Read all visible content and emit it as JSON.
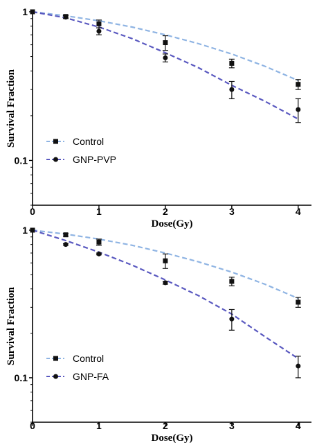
{
  "chart_data": [
    {
      "type": "scatter",
      "title": "",
      "xlabel": "Dose(Gy)",
      "ylabel": "Survival Fraction",
      "xlim": [
        0,
        4.2
      ],
      "ylim": [
        0.05,
        1.0
      ],
      "yscale": "log",
      "xticks": [
        0,
        1,
        2,
        3,
        4
      ],
      "yticks": [
        {
          "value": 1,
          "label": "1"
        },
        {
          "value": 0.1,
          "label": "0.1"
        }
      ],
      "grid": false,
      "legend_position": "bottom-left",
      "series": [
        {
          "name": "Control",
          "marker": "square",
          "color": "#111111",
          "fit_color": "#8fb4e3",
          "x": [
            0,
            0.5,
            1,
            2,
            3,
            4
          ],
          "y": [
            1.0,
            0.93,
            0.83,
            0.62,
            0.45,
            0.325
          ],
          "err": [
            0,
            0.02,
            0.05,
            0.07,
            0.03,
            0.025
          ],
          "fit": [
            [
              0,
              1.0
            ],
            [
              0.5,
              0.94
            ],
            [
              1,
              0.87
            ],
            [
              1.5,
              0.79
            ],
            [
              2,
              0.7
            ],
            [
              2.5,
              0.61
            ],
            [
              3,
              0.52
            ],
            [
              3.5,
              0.43
            ],
            [
              4,
              0.345
            ]
          ]
        },
        {
          "name": "GNP-PVP",
          "marker": "circle",
          "color": "#111111",
          "fit_color": "#5a59c0",
          "x": [
            0,
            0.5,
            1,
            2,
            3,
            4
          ],
          "y": [
            1.0,
            0.92,
            0.74,
            0.49,
            0.3,
            0.22
          ],
          "err": [
            0,
            0.02,
            0.04,
            0.03,
            0.04,
            0.04
          ],
          "fit": [
            [
              0,
              1.0
            ],
            [
              0.5,
              0.91
            ],
            [
              1,
              0.79
            ],
            [
              1.5,
              0.66
            ],
            [
              2,
              0.53
            ],
            [
              2.5,
              0.42
            ],
            [
              3,
              0.32
            ],
            [
              3.5,
              0.25
            ],
            [
              4,
              0.19
            ]
          ]
        }
      ]
    },
    {
      "type": "scatter",
      "title": "",
      "xlabel": "Dose(Gy)",
      "ylabel": "Survival Fraction",
      "xlim": [
        0,
        4.2
      ],
      "ylim": [
        0.05,
        1.0
      ],
      "yscale": "log",
      "xticks": [
        0,
        1,
        2,
        3,
        4
      ],
      "yticks": [
        {
          "value": 1,
          "label": "1"
        },
        {
          "value": 0.1,
          "label": "0.1"
        }
      ],
      "grid": false,
      "legend_position": "bottom-left",
      "series": [
        {
          "name": "Control",
          "marker": "square",
          "color": "#111111",
          "fit_color": "#8fb4e3",
          "x": [
            0,
            0.5,
            1,
            2,
            3,
            4
          ],
          "y": [
            1.0,
            0.93,
            0.83,
            0.62,
            0.45,
            0.325
          ],
          "err": [
            0,
            0.02,
            0.04,
            0.07,
            0.03,
            0.025
          ],
          "fit": [
            [
              0,
              1.0
            ],
            [
              0.5,
              0.94
            ],
            [
              1,
              0.87
            ],
            [
              1.5,
              0.79
            ],
            [
              2,
              0.7
            ],
            [
              2.5,
              0.61
            ],
            [
              3,
              0.52
            ],
            [
              3.5,
              0.43
            ],
            [
              4,
              0.345
            ]
          ]
        },
        {
          "name": "GNP-FA",
          "marker": "circle",
          "color": "#111111",
          "fit_color": "#5a59c0",
          "x": [
            0,
            0.5,
            1,
            2,
            3,
            4
          ],
          "y": [
            1.0,
            0.8,
            0.69,
            0.44,
            0.25,
            0.12
          ],
          "err": [
            0,
            0.01,
            0.01,
            0.01,
            0.04,
            0.02
          ],
          "fit": [
            [
              0,
              1.0
            ],
            [
              0.5,
              0.85
            ],
            [
              1,
              0.71
            ],
            [
              1.5,
              0.58
            ],
            [
              2,
              0.46
            ],
            [
              2.5,
              0.36
            ],
            [
              3,
              0.27
            ],
            [
              3.5,
              0.19
            ],
            [
              4,
              0.135
            ]
          ]
        }
      ]
    }
  ]
}
